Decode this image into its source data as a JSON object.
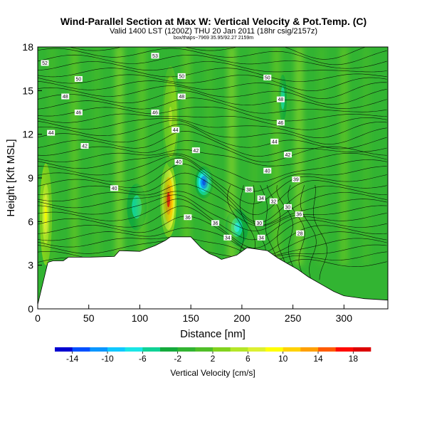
{
  "header": {
    "title": "Wind-Parallel Section at Max W: Vertical Velocity & Pot.Temp. (C)",
    "subtitle": "Valid 1400 LST (1200Z) THU 20 Jan 2011 (18hr csig/2157z)",
    "subtitle2": "box/thaps~7969 35.95/92.27 2159m"
  },
  "chart_data": {
    "type": "heatmap",
    "xlabel": "Distance [nm]",
    "ylabel": "Height [Kft MSL]",
    "xlim": [
      0,
      343
    ],
    "ylim": [
      0,
      18
    ],
    "x_ticks": [
      "0",
      "50",
      "100",
      "150",
      "200",
      "250",
      "300"
    ],
    "y_ticks": [
      "0",
      "3",
      "6",
      "9",
      "12",
      "15",
      "18"
    ],
    "colorbar": {
      "label": "Vertical Velocity [cm/s]",
      "tick_labels": [
        "-14",
        "-10",
        "-6",
        "-2",
        "2",
        "6",
        "10",
        "14",
        "18"
      ],
      "bounds": [
        -16,
        -14,
        -12,
        -10,
        -8,
        -6,
        -4,
        -2,
        0,
        2,
        4,
        6,
        8,
        10,
        12,
        14,
        16,
        18,
        20
      ],
      "colors": [
        "#0000d0",
        "#0050ff",
        "#0a96ff",
        "#10c8ff",
        "#1ae6e6",
        "#10d296",
        "#14aa3c",
        "#32b432",
        "#50be28",
        "#82d21e",
        "#b4e628",
        "#dcf032",
        "#ffff00",
        "#ffd200",
        "#ffa000",
        "#ff5a00",
        "#ff0a00",
        "#dc0000"
      ]
    },
    "terrain": [
      [
        0,
        0.3
      ],
      [
        10,
        3.2
      ],
      [
        15,
        3.3
      ],
      [
        25,
        3.3
      ],
      [
        30,
        3.55
      ],
      [
        50,
        3.55
      ],
      [
        75,
        3.6
      ],
      [
        80,
        4.0
      ],
      [
        100,
        3.95
      ],
      [
        115,
        4.35
      ],
      [
        125,
        4.7
      ],
      [
        130,
        4.95
      ],
      [
        150,
        4.95
      ],
      [
        160,
        4.2
      ],
      [
        168,
        3.8
      ],
      [
        175,
        3.6
      ],
      [
        180,
        3.4
      ],
      [
        195,
        3.7
      ],
      [
        205,
        4.2
      ],
      [
        225,
        4.0
      ],
      [
        235,
        3.5
      ],
      [
        245,
        3.1
      ],
      [
        255,
        2.7
      ],
      [
        265,
        2.2
      ],
      [
        280,
        1.6
      ],
      [
        290,
        1.2
      ],
      [
        300,
        0.9
      ],
      [
        320,
        0.7
      ],
      [
        343,
        0.6
      ]
    ],
    "features": [
      {
        "name": "updraft",
        "x": 128,
        "y": 7.5,
        "rx": 8,
        "ry": 2.6,
        "value": 20
      },
      {
        "name": "downdraft",
        "x": 163,
        "y": 8.7,
        "rx": 9,
        "ry": 1.1,
        "value": -15
      },
      {
        "name": "downdraft-lee",
        "x": 195,
        "y": 5.6,
        "rx": 14,
        "ry": 1.6,
        "value": -7
      },
      {
        "name": "downdraft-left",
        "x": 97,
        "y": 7.0,
        "rx": 12,
        "ry": 2.0,
        "value": -6
      },
      {
        "name": "updraft-upper",
        "x": 130,
        "y": 13.2,
        "rx": 8,
        "ry": 3.5,
        "value": 5
      },
      {
        "name": "updraft-edge",
        "x": 8,
        "y": 6.5,
        "rx": 6,
        "ry": 3.5,
        "value": 10
      },
      {
        "name": "downdraft-upper",
        "x": 240,
        "y": 14.5,
        "rx": 5,
        "ry": 2.0,
        "value": -6
      }
    ],
    "contour_labels": [
      {
        "text": "52",
        "x": 7,
        "y": 16.9
      },
      {
        "text": "53",
        "x": 115,
        "y": 17.4
      },
      {
        "text": "50",
        "x": 40,
        "y": 15.8
      },
      {
        "text": "50",
        "x": 141,
        "y": 16.0
      },
      {
        "text": "50",
        "x": 225,
        "y": 15.9
      },
      {
        "text": "48",
        "x": 27,
        "y": 14.6
      },
      {
        "text": "48",
        "x": 141,
        "y": 14.6
      },
      {
        "text": "48",
        "x": 238,
        "y": 14.4
      },
      {
        "text": "46",
        "x": 40,
        "y": 13.5
      },
      {
        "text": "46",
        "x": 115,
        "y": 13.5
      },
      {
        "text": "46",
        "x": 238,
        "y": 12.8
      },
      {
        "text": "44",
        "x": 13,
        "y": 12.1
      },
      {
        "text": "44",
        "x": 135,
        "y": 12.3
      },
      {
        "text": "44",
        "x": 232,
        "y": 11.5
      },
      {
        "text": "42",
        "x": 46,
        "y": 11.2
      },
      {
        "text": "42",
        "x": 155,
        "y": 10.9
      },
      {
        "text": "42",
        "x": 245,
        "y": 10.6
      },
      {
        "text": "40",
        "x": 138,
        "y": 10.1
      },
      {
        "text": "40",
        "x": 225,
        "y": 9.5
      },
      {
        "text": "40",
        "x": 75,
        "y": 8.3
      },
      {
        "text": "39",
        "x": 253,
        "y": 8.9
      },
      {
        "text": "38",
        "x": 207,
        "y": 8.2
      },
      {
        "text": "34",
        "x": 219,
        "y": 7.6
      },
      {
        "text": "32",
        "x": 231,
        "y": 7.4
      },
      {
        "text": "30",
        "x": 245,
        "y": 7.0
      },
      {
        "text": "36",
        "x": 147,
        "y": 6.3
      },
      {
        "text": "36",
        "x": 174,
        "y": 5.9
      },
      {
        "text": "36",
        "x": 256,
        "y": 6.5
      },
      {
        "text": "30",
        "x": 217,
        "y": 5.9
      },
      {
        "text": "34",
        "x": 186,
        "y": 4.9
      },
      {
        "text": "34",
        "x": 219,
        "y": 4.9
      },
      {
        "text": "28",
        "x": 257,
        "y": 5.2
      }
    ],
    "colors": {
      "background_field": "#32b432",
      "terrain_fill": "#ffffff",
      "contour": "#000000"
    }
  }
}
